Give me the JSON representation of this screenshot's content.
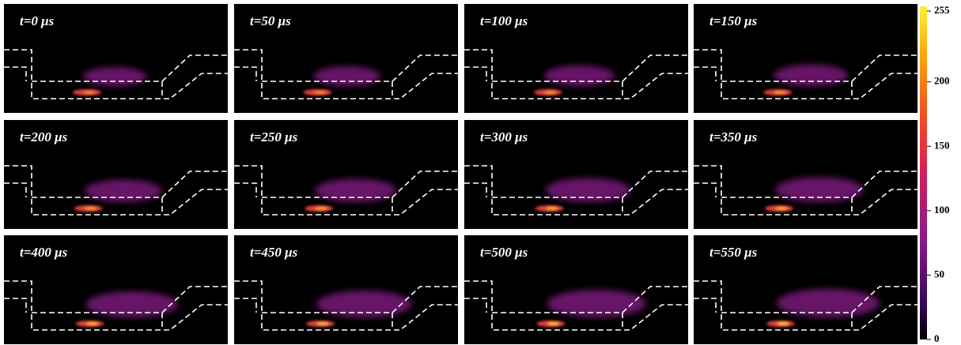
{
  "panels": [
    {
      "label": "t=0 μs"
    },
    {
      "label": "t=50 μs"
    },
    {
      "label": "t=100 μs"
    },
    {
      "label": "t=150 μs"
    },
    {
      "label": "t=200 μs"
    },
    {
      "label": "t=250 μs"
    },
    {
      "label": "t=300 μs"
    },
    {
      "label": "t=350 μs"
    },
    {
      "label": "t=400 μs"
    },
    {
      "label": "t=450 μs"
    },
    {
      "label": "t=500 μs"
    },
    {
      "label": "t=550 μs"
    }
  ],
  "colorbar": {
    "range": [
      0,
      255
    ],
    "ticks": [
      0,
      50,
      100,
      150,
      200,
      255
    ]
  }
}
